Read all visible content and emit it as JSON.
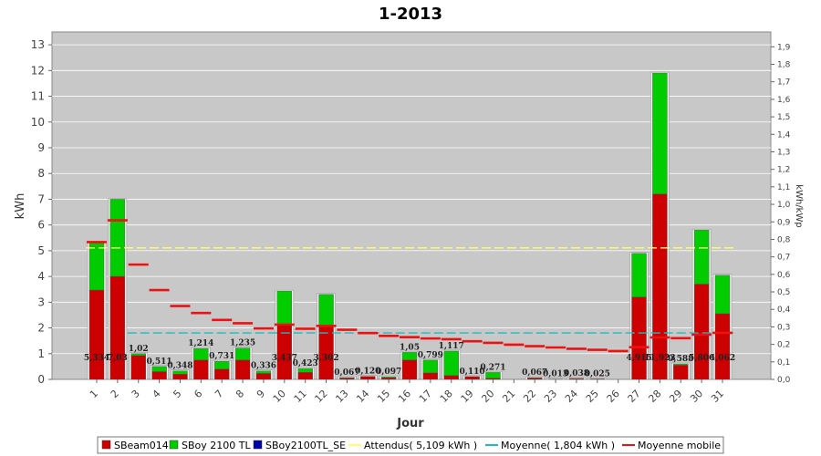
{
  "chart_data": {
    "type": "bar",
    "title": "1-2013",
    "xlabel": "Jour",
    "ylabel": "kWh",
    "y2label": "kWh/kWp",
    "ylim": [
      0,
      13.5
    ],
    "y2lim": [
      0,
      1.985
    ],
    "yticks": [
      "0",
      "1",
      "2",
      "3",
      "4",
      "5",
      "6",
      "7",
      "8",
      "9",
      "10",
      "11",
      "12",
      "13"
    ],
    "y2ticks": [
      "0,0",
      "0,1",
      "0,2",
      "0,3",
      "0,4",
      "0,5",
      "0,6",
      "0,7",
      "0,8",
      "0,9",
      "1,0",
      "1,1",
      "1,2",
      "1,3",
      "1,4",
      "1,5",
      "1,6",
      "1,7",
      "1,8",
      "1,9"
    ],
    "categories": [
      "1",
      "2",
      "3",
      "4",
      "5",
      "6",
      "7",
      "8",
      "9",
      "10",
      "11",
      "12",
      "13",
      "14",
      "15",
      "16",
      "17",
      "18",
      "19",
      "20",
      "21",
      "22",
      "23",
      "24",
      "25",
      "26",
      "27",
      "28",
      "29",
      "30",
      "31"
    ],
    "series": [
      {
        "name": "SBeam014",
        "color": "#cc0000",
        "values": [
          3.47,
          4.0,
          0.93,
          0.3,
          0.2,
          0.75,
          0.4,
          0.75,
          0.23,
          2.15,
          0.27,
          2.1,
          0.05,
          0.12,
          0.06,
          0.75,
          0.25,
          0.15,
          0.11,
          0.04,
          0.0,
          0.05,
          0.01,
          0.03,
          0.02,
          0.0,
          3.2,
          7.2,
          0.55,
          3.7,
          2.55
        ]
      },
      {
        "name": "SBoy 2100 TL",
        "color": "#00cc00",
        "values": [
          1.83,
          3.0,
          0.07,
          0.2,
          0.13,
          0.45,
          0.3,
          0.47,
          0.1,
          1.28,
          0.15,
          1.2,
          0.02,
          0.0,
          0.04,
          0.3,
          0.5,
          0.95,
          0.0,
          0.23,
          0.0,
          0.02,
          0.0,
          0.01,
          0.0,
          0.0,
          1.7,
          4.7,
          0.05,
          2.1,
          1.5
        ]
      },
      {
        "name": "SBoy2100TL_SE",
        "color": "#0000aa",
        "values": [
          0,
          0,
          0,
          0,
          0,
          0,
          0,
          0,
          0,
          0,
          0,
          0,
          0,
          0,
          0,
          0,
          0,
          0,
          0,
          0,
          0,
          0,
          0,
          0,
          0,
          0,
          0,
          0,
          0,
          0,
          0
        ]
      }
    ],
    "bar_labels": [
      "5,334",
      "7,03",
      "1,02",
      "0,511",
      "0,348",
      "1,214",
      "0,731",
      "1,235",
      "0,336",
      "3,437",
      "0,423",
      "3,302",
      "0,067",
      "0,120",
      "0,097",
      "1,05",
      "0,799",
      "1,117",
      "0,110",
      "0,271",
      "",
      "0,067",
      "0,013",
      "0,038",
      "0,025",
      "",
      "4,915",
      "11,923",
      "0,588",
      "5,806",
      "4,062"
    ],
    "attendus": {
      "name": "Attendus( 5,109 kWh )",
      "value": 5.109,
      "color": "#ffff66"
    },
    "moyenne": {
      "name": "Moyenne( 1,804 kWh )",
      "value": 1.804,
      "color": "#22bbbb"
    },
    "moyenne_mobile": {
      "name": "Moyenne mobile",
      "color": "#ee1111",
      "values": [
        5.334,
        6.18,
        4.46,
        3.47,
        2.85,
        2.58,
        2.31,
        2.18,
        1.98,
        2.13,
        1.97,
        2.08,
        1.93,
        1.8,
        1.69,
        1.64,
        1.59,
        1.56,
        1.48,
        1.42,
        1.35,
        1.29,
        1.24,
        1.19,
        1.15,
        1.1,
        1.25,
        1.63,
        1.6,
        1.74,
        1.81
      ]
    },
    "legend_position": "bottom",
    "grid": true
  }
}
